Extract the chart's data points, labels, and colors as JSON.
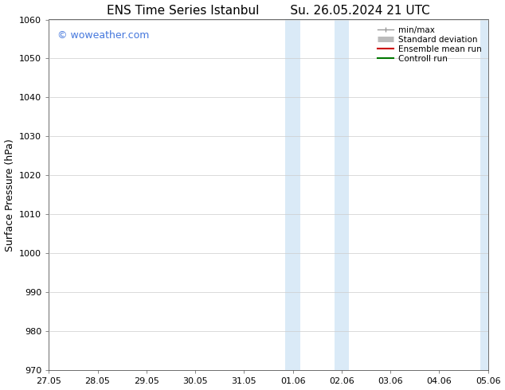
{
  "title_left": "ENS Time Series Istanbul",
  "title_right": "Su. 26.05.2024 21 UTC",
  "ylabel": "Surface Pressure (hPa)",
  "ylim": [
    970,
    1060
  ],
  "yticks": [
    970,
    980,
    990,
    1000,
    1010,
    1020,
    1030,
    1040,
    1050,
    1060
  ],
  "xtick_labels": [
    "27.05",
    "28.05",
    "29.05",
    "30.05",
    "31.05",
    "01.06",
    "02.06",
    "03.06",
    "04.06",
    "05.06"
  ],
  "shaded_regions": [
    {
      "xmin": 4.85,
      "xmax": 5.15,
      "color": "#daeaf7"
    },
    {
      "xmin": 5.85,
      "xmax": 6.15,
      "color": "#daeaf7"
    },
    {
      "xmin": 8.85,
      "xmax": 9.15,
      "color": "#daeaf7"
    }
  ],
  "watermark_text": "© woweather.com",
  "watermark_color": "#4477dd",
  "legend_items": [
    {
      "label": "min/max",
      "color": "#999999",
      "lw": 1.0
    },
    {
      "label": "Standard deviation",
      "color": "#bbbbbb",
      "lw": 5
    },
    {
      "label": "Ensemble mean run",
      "color": "#cc0000",
      "lw": 1.5
    },
    {
      "label": "Controll run",
      "color": "#007700",
      "lw": 1.5
    }
  ],
  "bg_color": "#ffffff",
  "grid_color": "#cccccc",
  "title_fontsize": 11,
  "ylabel_fontsize": 9,
  "tick_fontsize": 8,
  "legend_fontsize": 7.5,
  "watermark_fontsize": 9
}
